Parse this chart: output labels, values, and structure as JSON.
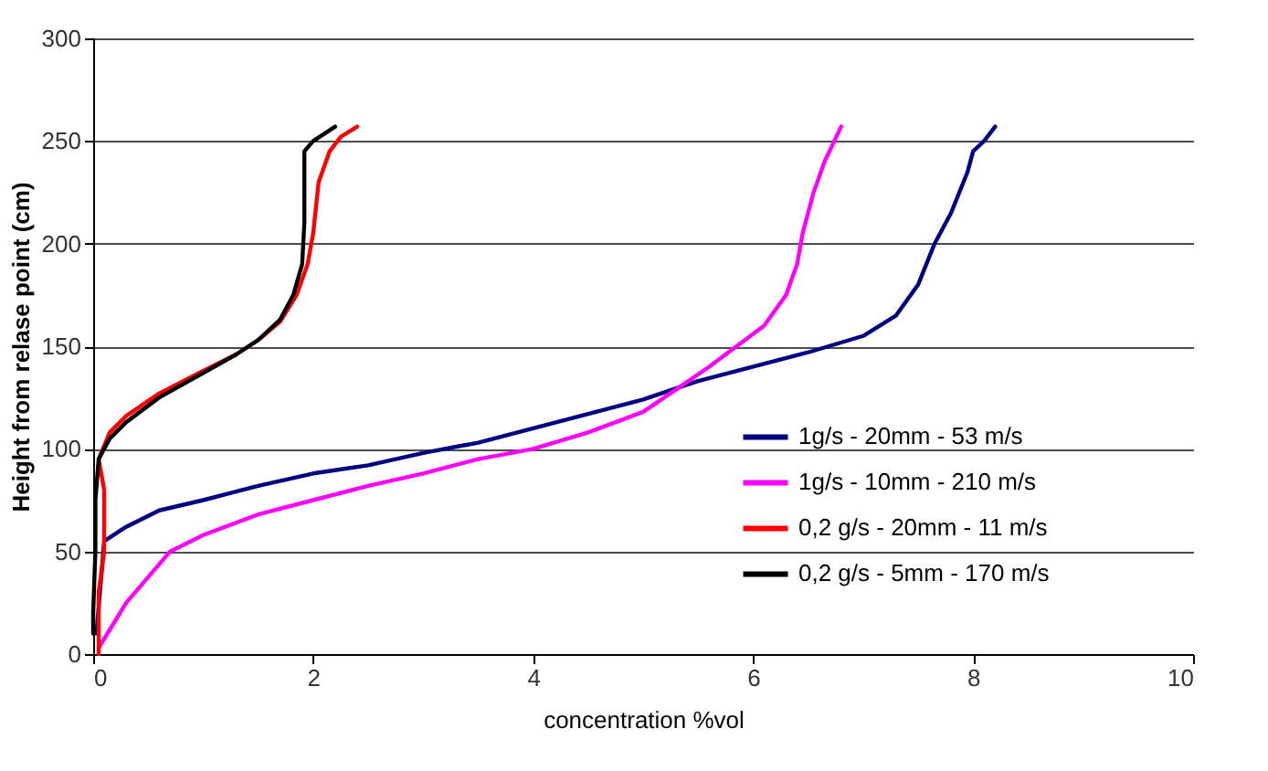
{
  "chart_data": {
    "type": "line",
    "xlabel": "concentration %vol",
    "ylabel": "Height from relase point (cm)",
    "xlim": [
      0,
      10
    ],
    "xticks": [
      0,
      2,
      4,
      6,
      8,
      10
    ],
    "ylim": [
      0,
      300
    ],
    "yticks": [
      0,
      50,
      100,
      150,
      200,
      250,
      300
    ],
    "grid": "y",
    "legend": "right",
    "line_style": "solid",
    "series": [
      {
        "name": "1g/s - 20mm - 53 m/s",
        "color": "#000080",
        "x": [
          0.03,
          0.1,
          0.3,
          0.6,
          1,
          1.5,
          2,
          2.5,
          3,
          3.5,
          4,
          4.5,
          5,
          5.33,
          5.5,
          6,
          6.5,
          7,
          7.3,
          7.5,
          7.65,
          7.8,
          7.95,
          8.0,
          8.1,
          8.2
        ],
        "values": [
          10,
          55,
          62,
          70,
          75,
          82,
          88,
          92,
          98,
          103,
          110,
          117,
          124,
          130,
          133,
          140,
          147,
          155,
          165,
          180,
          200,
          215,
          235,
          245,
          250,
          257
        ]
      },
      {
        "name": "1g/s - 10mm - 210 m/s",
        "color": "#ff00ff",
        "x": [
          0.05,
          0.3,
          0.7,
          1,
          1.5,
          2,
          2.5,
          3,
          3.5,
          4,
          4.5,
          5,
          5.33,
          5.6,
          5.85,
          6.1,
          6.3,
          6.4,
          6.45,
          6.55,
          6.65,
          6.8
        ],
        "values": [
          3,
          25,
          50,
          58,
          68,
          75,
          82,
          88,
          95,
          100,
          108,
          118,
          130,
          140,
          150,
          160,
          175,
          190,
          205,
          225,
          240,
          257
        ]
      },
      {
        "name": "0,2 g/s - 20mm - 11 m/s",
        "color": "#ff0000",
        "x": [
          0.05,
          0.05,
          0.1,
          0.1,
          0.05,
          0.15,
          0.3,
          0.6,
          1,
          1.3,
          1.5,
          1.7,
          1.85,
          1.95,
          2.0,
          2.05,
          2.15,
          2.25,
          2.4
        ],
        "values": [
          0,
          30,
          50,
          80,
          95,
          108,
          116,
          127,
          138,
          146,
          153,
          162,
          175,
          190,
          205,
          230,
          245,
          252,
          257
        ]
      },
      {
        "name": "0,2 g/s - 5mm - 170 m/s",
        "color": "#000000",
        "x": [
          0,
          0,
          0.02,
          0.02,
          0.05,
          0.15,
          0.3,
          0.6,
          1,
          1.3,
          1.5,
          1.7,
          1.82,
          1.9,
          1.92,
          1.92,
          1.92,
          2.0,
          2.2
        ],
        "values": [
          10,
          20,
          50,
          75,
          95,
          105,
          113,
          125,
          137,
          146,
          153,
          163,
          175,
          190,
          210,
          230,
          245,
          250,
          257
        ]
      }
    ]
  }
}
